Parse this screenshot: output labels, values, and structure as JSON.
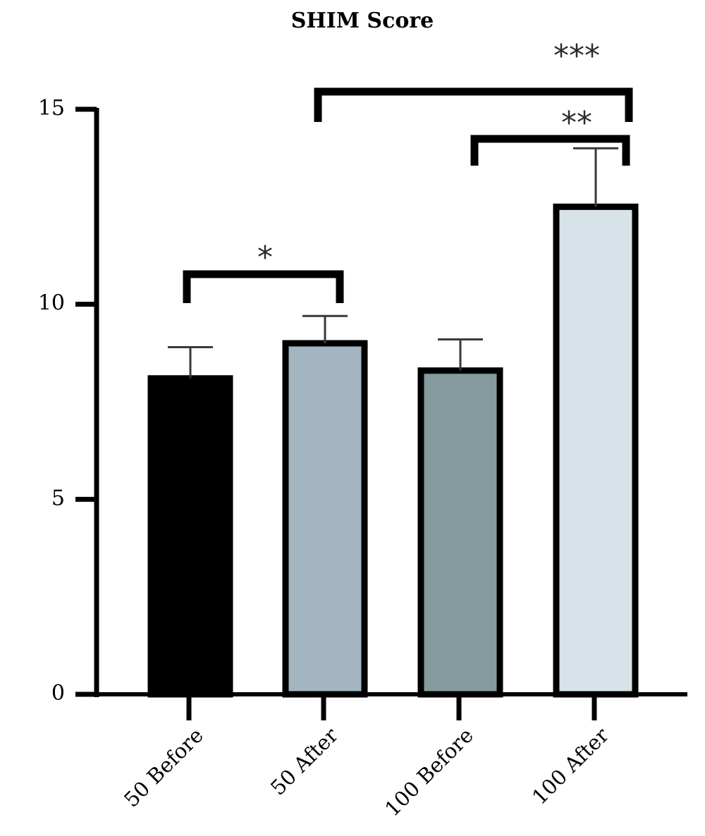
{
  "chart_data": {
    "type": "bar",
    "title": "SHIM Score",
    "xlabel": "",
    "ylabel": "",
    "ylim": [
      0,
      15
    ],
    "yticks": [
      0,
      5,
      10,
      15
    ],
    "categories": [
      "50 Before",
      "50 After",
      "100 Before",
      "100 After"
    ],
    "values": [
      8.1,
      9.0,
      8.3,
      12.5
    ],
    "errors": [
      0.8,
      0.7,
      0.8,
      1.5
    ],
    "colors": [
      "#000000",
      "#a3b5c1",
      "#869b9e",
      "#d7e2e9"
    ],
    "significance": [
      {
        "from": 0,
        "to": 1,
        "label": "*"
      },
      {
        "from": 2,
        "to": 3,
        "label": "**"
      },
      {
        "from": 1,
        "to": 3,
        "label": "***"
      }
    ],
    "grid": false,
    "legend": "none"
  }
}
